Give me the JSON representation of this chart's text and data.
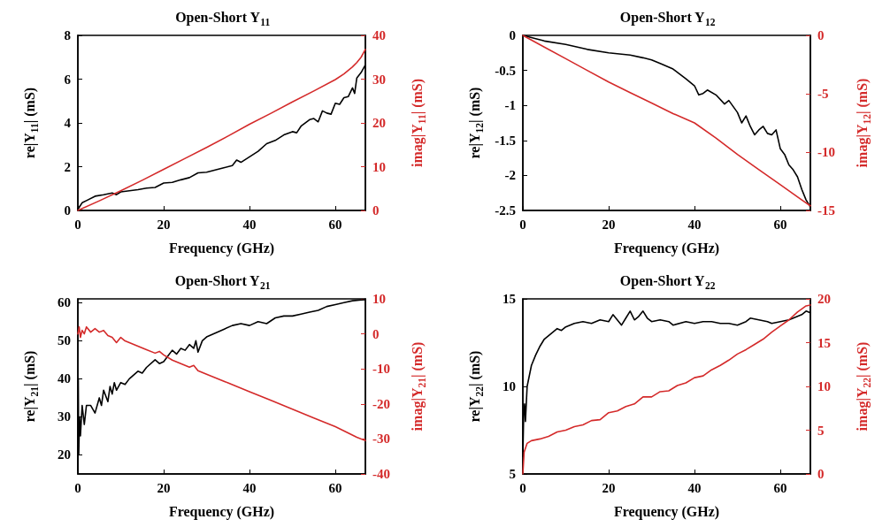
{
  "chart_data": [
    {
      "type": "line",
      "title": "Open-Short Y$_{11}$",
      "xlabel": "Frequency (GHz)",
      "ylabel": "re|Y$_{11}$| (mS)",
      "y2label": "imag|Y$_{11}$| (mS)",
      "xlim": [
        0,
        67
      ],
      "xticks": [
        0,
        20,
        40,
        60
      ],
      "ylim": [
        0,
        8
      ],
      "yticks": [
        0,
        2,
        4,
        6,
        8
      ],
      "y2lim": [
        0,
        40
      ],
      "y2ticks": [
        0,
        10,
        20,
        30,
        40
      ],
      "series": [
        {
          "color": "#000000",
          "x": [
            0,
            0.5,
            1,
            2,
            4,
            6,
            8,
            9,
            10,
            12,
            14,
            16,
            18,
            20,
            22,
            24,
            26,
            28,
            30,
            32,
            34,
            36,
            37,
            38,
            40,
            42,
            44,
            46,
            48,
            50,
            51,
            52,
            54,
            55,
            56,
            57,
            58,
            59,
            60,
            61,
            62,
            63,
            64,
            64.5,
            65,
            66,
            67
          ],
          "values": [
            0.05,
            0.2,
            0.35,
            0.45,
            0.65,
            0.72,
            0.8,
            0.72,
            0.85,
            0.9,
            0.95,
            1.02,
            1.05,
            1.25,
            1.28,
            1.4,
            1.5,
            1.72,
            1.75,
            1.85,
            1.95,
            2.05,
            2.3,
            2.2,
            2.45,
            2.7,
            3.05,
            3.2,
            3.45,
            3.6,
            3.55,
            3.85,
            4.15,
            4.2,
            4.05,
            4.55,
            4.45,
            4.4,
            4.9,
            4.85,
            5.15,
            5.2,
            5.6,
            5.35,
            6.05,
            6.3,
            6.65
          ]
        },
        {
          "color": "#d42a2a",
          "axis": "y2",
          "x": [
            0,
            5,
            10,
            15,
            20,
            25,
            30,
            35,
            40,
            45,
            50,
            55,
            60,
            62,
            64,
            65,
            66,
            67
          ],
          "values": [
            0,
            2.2,
            4.5,
            6.9,
            9.4,
            11.9,
            14.4,
            17.0,
            19.7,
            22.2,
            24.8,
            27.3,
            29.9,
            31.2,
            32.8,
            33.8,
            35,
            36.8
          ]
        }
      ]
    },
    {
      "type": "line",
      "title": "Open-Short Y$_{12}$",
      "xlabel": "Frequency (GHz)",
      "ylabel": "re|Y$_{12}$| (mS)",
      "y2label": "imag|Y$_{12}$| (mS)",
      "xlim": [
        0,
        67
      ],
      "xticks": [
        0,
        20,
        40,
        60
      ],
      "ylim": [
        -2.5,
        0
      ],
      "yticks": [
        -2.5,
        -2,
        -1.5,
        -1,
        -0.5,
        0
      ],
      "y2lim": [
        -15,
        0
      ],
      "y2ticks": [
        -15,
        -10,
        -5,
        0
      ],
      "series": [
        {
          "color": "#000000",
          "x": [
            0,
            5,
            10,
            15,
            20,
            25,
            28,
            30,
            32,
            35,
            38,
            40,
            41,
            42,
            43,
            45,
            47,
            48,
            50,
            51,
            52,
            53,
            54,
            55,
            56,
            57,
            58,
            59,
            60,
            61,
            62,
            63,
            64,
            65,
            66,
            67
          ],
          "values": [
            0,
            -0.08,
            -0.13,
            -0.2,
            -0.25,
            -0.28,
            -0.32,
            -0.35,
            -0.4,
            -0.48,
            -0.62,
            -0.72,
            -0.85,
            -0.83,
            -0.78,
            -0.85,
            -0.98,
            -0.93,
            -1.1,
            -1.25,
            -1.15,
            -1.3,
            -1.42,
            -1.35,
            -1.3,
            -1.4,
            -1.42,
            -1.35,
            -1.62,
            -1.7,
            -1.85,
            -1.92,
            -2.02,
            -2.2,
            -2.35,
            -2.45
          ]
        },
        {
          "color": "#d42a2a",
          "axis": "y2",
          "x": [
            0,
            5,
            10,
            15,
            20,
            25,
            30,
            35,
            40,
            45,
            50,
            55,
            60,
            65,
            67
          ],
          "values": [
            0,
            -1,
            -2,
            -3,
            -4,
            -4.9,
            -5.8,
            -6.7,
            -7.5,
            -8.8,
            -10.2,
            -11.5,
            -12.8,
            -14.1,
            -14.6
          ]
        }
      ]
    },
    {
      "type": "line",
      "title": "Open-Short Y$_{21}$",
      "xlabel": "Frequency (GHz)",
      "ylabel": "re|Y$_{21}$| (mS)",
      "y2label": "imag|Y$_{21}$| (mS)",
      "xlim": [
        0,
        67
      ],
      "xticks": [
        0,
        20,
        40,
        60
      ],
      "ylim": [
        15,
        61
      ],
      "yticks": [
        20,
        30,
        40,
        50,
        60
      ],
      "y2lim": [
        -40,
        10
      ],
      "y2ticks": [
        -40,
        -30,
        -20,
        -10,
        0,
        10
      ],
      "series": [
        {
          "color": "#000000",
          "x": [
            0,
            0.1,
            0.2,
            0.4,
            0.6,
            1,
            1.5,
            2,
            3,
            4,
            5,
            5.5,
            6,
            7,
            7.5,
            8,
            8.5,
            9,
            10,
            11,
            12,
            14,
            15,
            16,
            18,
            19,
            20,
            21,
            22,
            23,
            24,
            25,
            26,
            27,
            27.5,
            28,
            29,
            30,
            32,
            34,
            36,
            38,
            40,
            42,
            44,
            46,
            48,
            50,
            52,
            54,
            56,
            58,
            60,
            62,
            64,
            66,
            67
          ],
          "values": [
            16,
            40,
            20,
            30,
            25,
            33,
            28,
            33,
            33,
            31,
            35,
            33,
            37,
            34,
            38,
            36,
            39,
            37,
            39,
            38.5,
            40,
            42,
            41.5,
            43,
            45,
            44,
            44.5,
            46,
            47.5,
            46.5,
            48,
            47.5,
            49,
            48,
            50,
            47,
            50,
            51,
            52,
            53,
            54,
            54.5,
            54,
            55,
            54.5,
            56,
            56.5,
            56.5,
            57,
            57.5,
            58,
            59,
            59.5,
            60,
            60.5,
            60.7,
            60.8
          ]
        },
        {
          "color": "#d42a2a",
          "axis": "y2",
          "x": [
            0,
            0.3,
            0.6,
            1,
            1.5,
            2,
            3,
            4,
            5,
            6,
            7,
            8,
            9,
            10,
            11,
            12,
            14,
            16,
            18,
            19,
            20,
            22,
            24,
            26,
            27,
            28,
            30,
            35,
            40,
            45,
            50,
            55,
            60,
            65,
            67
          ],
          "values": [
            0,
            2,
            -1,
            1,
            0,
            2,
            0.5,
            1.5,
            0.5,
            1,
            -0.5,
            -1,
            -2.5,
            -1,
            -2,
            -2.5,
            -3.5,
            -4.5,
            -5.5,
            -5,
            -6,
            -7.5,
            -8.5,
            -9.5,
            -9,
            -10.5,
            -11.5,
            -14,
            -16.5,
            -19,
            -21.5,
            -24,
            -26.5,
            -29.5,
            -30.5
          ]
        }
      ]
    },
    {
      "type": "line",
      "title": "Open-Short Y$_{22}$",
      "xlabel": "Frequency (GHz)",
      "ylabel": "re|Y$_{22}$| (mS)",
      "y2label": "imag|Y$_{22}$| (mS)",
      "xlim": [
        0,
        67
      ],
      "xticks": [
        0,
        20,
        40,
        60
      ],
      "ylim": [
        5,
        15
      ],
      "yticks": [
        5,
        10,
        15
      ],
      "y2lim": [
        0,
        20
      ],
      "y2ticks": [
        0,
        5,
        10,
        15,
        20
      ],
      "series": [
        {
          "color": "#000000",
          "x": [
            0,
            0.2,
            0.4,
            0.6,
            1,
            2,
            3,
            4,
            5,
            6,
            7,
            8,
            9,
            10,
            12,
            14,
            16,
            18,
            20,
            21,
            22,
            23,
            24,
            25,
            26,
            27,
            28,
            29,
            30,
            32,
            34,
            35,
            38,
            40,
            42,
            44,
            46,
            48,
            50,
            52,
            53,
            55,
            57,
            58,
            60,
            62,
            64,
            65,
            66,
            67
          ],
          "values": [
            6,
            8.5,
            9,
            8,
            10,
            11.2,
            11.8,
            12.3,
            12.7,
            12.9,
            13.1,
            13.3,
            13.2,
            13.4,
            13.6,
            13.7,
            13.6,
            13.8,
            13.7,
            14.1,
            13.8,
            13.5,
            13.9,
            14.3,
            13.8,
            14,
            14.3,
            13.9,
            13.7,
            13.8,
            13.7,
            13.5,
            13.7,
            13.6,
            13.7,
            13.7,
            13.6,
            13.6,
            13.5,
            13.7,
            13.9,
            13.8,
            13.7,
            13.6,
            13.7,
            13.8,
            14,
            14.1,
            14.3,
            14.2
          ]
        },
        {
          "color": "#d42a2a",
          "axis": "y2",
          "x": [
            0,
            0.3,
            1,
            2,
            4,
            6,
            8,
            10,
            12,
            14,
            16,
            18,
            20,
            22,
            24,
            26,
            28,
            30,
            32,
            34,
            36,
            38,
            40,
            42,
            44,
            46,
            48,
            50,
            52,
            54,
            56,
            58,
            60,
            62,
            64,
            66,
            67
          ],
          "values": [
            0,
            2.5,
            3.5,
            3.8,
            4,
            4.3,
            4.8,
            5,
            5.4,
            5.6,
            6.1,
            6.2,
            7,
            7.2,
            7.7,
            8,
            8.8,
            8.8,
            9.4,
            9.5,
            10.1,
            10.4,
            11,
            11.2,
            11.9,
            12.4,
            13,
            13.7,
            14.2,
            14.8,
            15.4,
            16.2,
            16.9,
            17.6,
            18.5,
            19.2,
            19.3
          ]
        }
      ]
    }
  ]
}
